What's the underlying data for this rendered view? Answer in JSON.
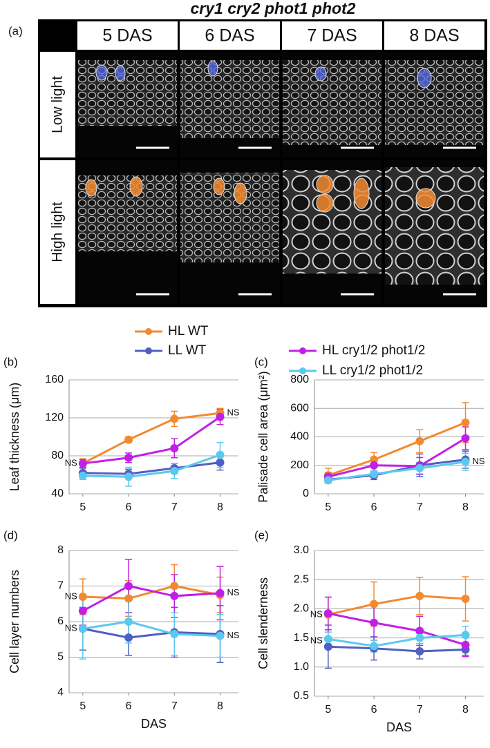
{
  "figure_a": {
    "title": "cry1 cry2 phot1 phot2",
    "label": "(a)",
    "columns": [
      "5 DAS",
      "6 DAS",
      "7 DAS",
      "8 DAS"
    ],
    "rows": [
      "Low light",
      "High light"
    ]
  },
  "chart_data": [
    {
      "type": "line",
      "panel": "(b)",
      "ylabel": "Leaf thickness (μm)",
      "x": [
        5,
        6,
        7,
        8
      ],
      "xlim": [
        4.7,
        8.4
      ],
      "xticks": [
        5,
        6,
        7,
        8
      ],
      "ylim": [
        40,
        160
      ],
      "yticks": [
        40,
        80,
        120,
        160
      ],
      "grid": true,
      "series": [
        {
          "name": "HL WT",
          "color": "#f28a30",
          "values": [
            72,
            97,
            119,
            125
          ],
          "errors": [
            5,
            3,
            8,
            5
          ]
        },
        {
          "name": "LL WT",
          "color": "#4f5fc4",
          "values": [
            62,
            61,
            67,
            73
          ],
          "errors": [
            5,
            5,
            5,
            8
          ]
        },
        {
          "name": "HL cry1/2 phot1/2",
          "color": "#c21fe6",
          "values": [
            72,
            78,
            88,
            121
          ],
          "errors": [
            4,
            5,
            10,
            8
          ]
        },
        {
          "name": "LL cry1/2 phot1/2",
          "color": "#5cc8ee",
          "values": [
            59,
            58,
            64,
            81
          ],
          "errors": [
            4,
            10,
            8,
            13
          ]
        }
      ],
      "annotations": [
        {
          "text": "NS",
          "x": 5,
          "y": 72
        },
        {
          "text": "NS",
          "x": 8,
          "y": 125
        }
      ]
    },
    {
      "type": "line",
      "panel": "(c)",
      "ylabel": "Palisade cell area (μm²)",
      "x": [
        5,
        6,
        7,
        8
      ],
      "xlim": [
        4.7,
        8.4
      ],
      "xticks": [
        5,
        6,
        7,
        8
      ],
      "ylim": [
        0,
        800
      ],
      "yticks": [
        0,
        200,
        400,
        600,
        800
      ],
      "grid": true,
      "series": [
        {
          "color": "#f28a30",
          "values": [
            130,
            240,
            370,
            500
          ],
          "errors": [
            50,
            50,
            80,
            140
          ]
        },
        {
          "color": "#4f5fc4",
          "values": [
            100,
            130,
            200,
            240
          ],
          "errors": [
            20,
            30,
            80,
            60
          ]
        },
        {
          "color": "#c21fe6",
          "values": [
            120,
            200,
            195,
            390
          ],
          "errors": [
            30,
            40,
            60,
            80
          ]
        },
        {
          "color": "#5cc8ee",
          "values": [
            95,
            140,
            180,
            225
          ],
          "errors": [
            20,
            20,
            40,
            60
          ]
        }
      ],
      "annotations": [
        {
          "text": "NS",
          "x": 8,
          "y": 225
        }
      ]
    },
    {
      "type": "line",
      "panel": "(d)",
      "ylabel": "Cell layer numbers",
      "xlabel": "DAS",
      "x": [
        5,
        6,
        7,
        8
      ],
      "xlim": [
        4.7,
        8.4
      ],
      "xticks": [
        5,
        6,
        7,
        8
      ],
      "ylim": [
        4,
        8
      ],
      "yticks": [
        4,
        5,
        6,
        7,
        8
      ],
      "grid": true,
      "series": [
        {
          "color": "#f28a30",
          "values": [
            6.7,
            6.65,
            7.0,
            6.75
          ],
          "errors": [
            0.5,
            0.5,
            0.6,
            0.5
          ]
        },
        {
          "color": "#4f5fc4",
          "values": [
            5.8,
            5.55,
            5.7,
            5.65
          ],
          "errors": [
            0.6,
            0.5,
            0.7,
            0.8
          ]
        },
        {
          "color": "#c21fe6",
          "values": [
            6.3,
            7.0,
            6.72,
            6.8
          ],
          "errors": [
            0.4,
            0.75,
            0.6,
            0.75
          ]
        },
        {
          "color": "#5cc8ee",
          "values": [
            5.8,
            6.0,
            5.65,
            5.6
          ],
          "errors": [
            0.85,
            0.6,
            0.6,
            0.6
          ]
        }
      ],
      "annotations": [
        {
          "text": "NS",
          "x": 5,
          "y": 6.7
        },
        {
          "text": "NS",
          "x": 5,
          "y": 5.8
        },
        {
          "text": "NS",
          "x": 8,
          "y": 6.8
        },
        {
          "text": "NS",
          "x": 8,
          "y": 5.6
        }
      ]
    },
    {
      "type": "line",
      "panel": "(e)",
      "ylabel": "Cell slenderness",
      "xlabel": "DAS",
      "x": [
        5,
        6,
        7,
        8
      ],
      "xlim": [
        4.7,
        8.4
      ],
      "xticks": [
        5,
        6,
        7,
        8
      ],
      "ylim": [
        0.5,
        3.0
      ],
      "yticks": [
        0.5,
        {
          "value": 1,
          "label": "1.0"
        },
        1.5,
        {
          "value": 2,
          "label": "2.0"
        },
        2.5,
        {
          "value": 3,
          "label": "3.0"
        }
      ],
      "grid": true,
      "series": [
        {
          "color": "#f28a30",
          "values": [
            1.9,
            2.08,
            2.22,
            2.17
          ],
          "errors": [
            0.3,
            0.38,
            0.32,
            0.38
          ]
        },
        {
          "color": "#4f5fc4",
          "values": [
            1.35,
            1.32,
            1.27,
            1.3
          ],
          "errors": [
            0.37,
            0.2,
            0.13,
            0.1
          ]
        },
        {
          "color": "#c21fe6",
          "values": [
            1.92,
            1.76,
            1.62,
            1.38
          ],
          "errors": [
            0.28,
            0.3,
            0.25,
            0.2
          ]
        },
        {
          "color": "#5cc8ee",
          "values": [
            1.48,
            1.36,
            1.5,
            1.55
          ],
          "errors": [
            0.12,
            0.1,
            0.1,
            0.15
          ]
        }
      ],
      "annotations": [
        {
          "text": "NS",
          "x": 5,
          "y": 1.9
        },
        {
          "text": "NS",
          "x": 5,
          "y": 1.45
        }
      ]
    }
  ]
}
